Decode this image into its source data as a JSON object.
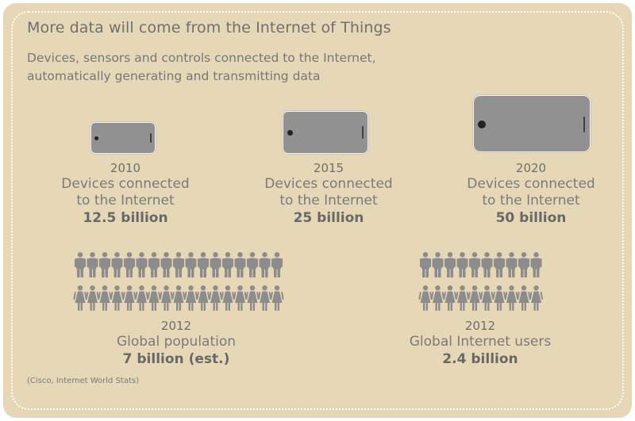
{
  "title": "More data will come from the Internet of Things",
  "subtitle_line1": "Devices, sensors and controls connected to the Internet,",
  "subtitle_line2": "automatically generating and transmitting data",
  "devices": [
    {
      "year": "2010",
      "label_line1": "Devices connected",
      "label_line2": "to the Internet",
      "value": "12.5 billion"
    },
    {
      "year": "2015",
      "label_line1": "Devices connected",
      "label_line2": "to the Internet",
      "value": "25 billion"
    },
    {
      "year": "2020",
      "label_line1": "Devices connected",
      "label_line2": "to the Internet",
      "value": "50 billion"
    }
  ],
  "population": {
    "year": "2012",
    "label": "Global population",
    "value": "7 billion (est.)",
    "icon_rows": 2,
    "icons_per_row": 17
  },
  "internet_users": {
    "year": "2012",
    "label": "Global Internet users",
    "value": "2.4 billion",
    "icon_rows": 2,
    "icons_per_row": 10
  },
  "source": "(Cisco, Internet World Stats)",
  "colors": {
    "background": "#e6d8b6",
    "device": "#919191",
    "people": "#8c8c8c",
    "text": "#7b7b7b"
  },
  "icons": [
    "phone-icon",
    "person-male-icon",
    "person-female-icon"
  ]
}
